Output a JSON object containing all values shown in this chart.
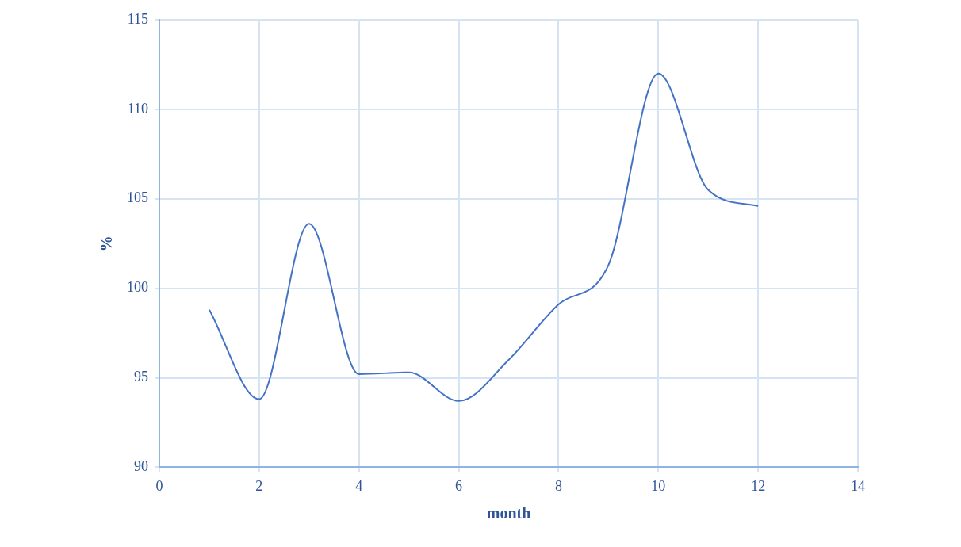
{
  "chart_data": {
    "type": "line",
    "xlabel": "month",
    "ylabel": "%",
    "x": [
      1,
      2,
      3,
      4,
      5,
      6,
      7,
      8,
      9,
      10,
      11,
      12
    ],
    "series": [
      {
        "color": "#4472c4",
        "values": [
          98.8,
          93.8,
          103.6,
          95.2,
          95.3,
          93.7,
          96.0,
          99.1,
          101.3,
          112.0,
          105.5,
          104.6
        ]
      }
    ],
    "xlim": [
      0,
      14
    ],
    "xticks": [
      0,
      2,
      4,
      6,
      8,
      10,
      12,
      14
    ],
    "ylim": [
      90,
      115
    ],
    "yticks": [
      90,
      95,
      100,
      105,
      110,
      115
    ],
    "grid": true,
    "legend": false,
    "marker": "none",
    "line_style": "solid"
  }
}
